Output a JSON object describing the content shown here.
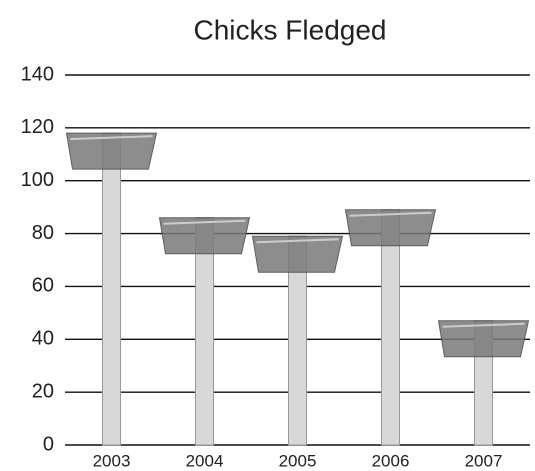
{
  "chart_data": {
    "type": "bar",
    "title": "Chicks Fledged",
    "categories": [
      "2003",
      "2004",
      "2005",
      "2006",
      "2007"
    ],
    "values": [
      118,
      86,
      79,
      89,
      47
    ],
    "color": "#7a7a7a",
    "ylim": [
      0,
      140
    ],
    "yticks": [
      0,
      20,
      40,
      60,
      80,
      100,
      120,
      140
    ],
    "grid": true
  }
}
